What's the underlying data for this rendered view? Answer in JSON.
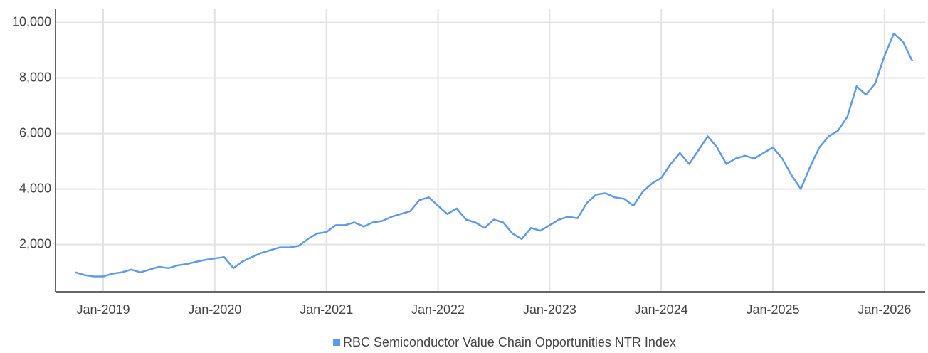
{
  "chart_data": {
    "type": "line",
    "x": [
      "2018-10",
      "2018-11",
      "2018-12",
      "2019-01",
      "2019-02",
      "2019-03",
      "2019-04",
      "2019-05",
      "2019-06",
      "2019-07",
      "2019-08",
      "2019-09",
      "2019-10",
      "2019-11",
      "2019-12",
      "2020-01",
      "2020-02",
      "2020-03",
      "2020-04",
      "2020-05",
      "2020-06",
      "2020-07",
      "2020-08",
      "2020-09",
      "2020-10",
      "2020-11",
      "2020-12",
      "2021-01",
      "2021-02",
      "2021-03",
      "2021-04",
      "2021-05",
      "2021-06",
      "2021-07",
      "2021-08",
      "2021-09",
      "2021-10",
      "2021-11",
      "2021-12",
      "2022-01",
      "2022-02",
      "2022-03",
      "2022-04",
      "2022-05",
      "2022-06",
      "2022-07",
      "2022-08",
      "2022-09",
      "2022-10",
      "2022-11",
      "2022-12",
      "2023-01",
      "2023-02",
      "2023-03",
      "2023-04",
      "2023-05",
      "2023-06",
      "2023-07",
      "2023-08",
      "2023-09",
      "2023-10",
      "2023-11",
      "2023-12",
      "2024-01",
      "2024-02",
      "2024-03",
      "2024-04",
      "2024-05",
      "2024-06",
      "2024-07",
      "2024-08",
      "2024-09",
      "2024-10",
      "2024-11",
      "2024-12",
      "2025-01",
      "2025-02",
      "2025-03",
      "2025-04",
      "2025-05",
      "2025-06",
      "2025-07",
      "2025-08",
      "2025-09",
      "2025-10",
      "2025-11",
      "2025-12",
      "2026-01",
      "2026-02",
      "2026-03",
      "2026-04"
    ],
    "series": [
      {
        "name": "RBC Semiconductor Value Chain Opportunities NTR Index",
        "color": "#5b9bef",
        "values": [
          1000,
          900,
          850,
          850,
          950,
          1000,
          1100,
          1000,
          1100,
          1200,
          1150,
          1250,
          1300,
          1380,
          1450,
          1500,
          1550,
          1150,
          1400,
          1550,
          1700,
          1800,
          1900,
          1900,
          1950,
          2200,
          2400,
          2450,
          2700,
          2700,
          2800,
          2650,
          2800,
          2850,
          3000,
          3100,
          3200,
          3600,
          3700,
          3400,
          3100,
          3300,
          2900,
          2800,
          2600,
          2900,
          2800,
          2400,
          2200,
          2600,
          2500,
          2700,
          2900,
          3000,
          2950,
          3500,
          3800,
          3850,
          3700,
          3650,
          3400,
          3900,
          4200,
          4400,
          4900,
          5300,
          4900,
          5400,
          5900,
          5500,
          4900,
          5100,
          5200,
          5100,
          5300,
          5500,
          5100,
          4500,
          4000,
          4800,
          5500,
          5900,
          6100,
          6600,
          7700,
          7400,
          7800,
          8800,
          9600,
          9300,
          8600
        ]
      }
    ],
    "xticks": [
      {
        "value": "2019-01",
        "label": "Jan-2019"
      },
      {
        "value": "2020-01",
        "label": "Jan-2020"
      },
      {
        "value": "2021-01",
        "label": "Jan-2021"
      },
      {
        "value": "2022-01",
        "label": "Jan-2022"
      },
      {
        "value": "2023-01",
        "label": "Jan-2023"
      },
      {
        "value": "2024-01",
        "label": "Jan-2024"
      },
      {
        "value": "2025-01",
        "label": "Jan-2025"
      },
      {
        "value": "2026-01",
        "label": "Jan-2026"
      }
    ],
    "ylim": [
      300,
      10500
    ],
    "yticks": [
      {
        "value": 2000,
        "label": "2,000"
      },
      {
        "value": 4000,
        "label": "4,000"
      },
      {
        "value": 6000,
        "label": "6,000"
      },
      {
        "value": 8000,
        "label": "8,000"
      },
      {
        "value": 10000,
        "label": "10,000"
      }
    ],
    "grid": true,
    "legend": "bottom"
  }
}
